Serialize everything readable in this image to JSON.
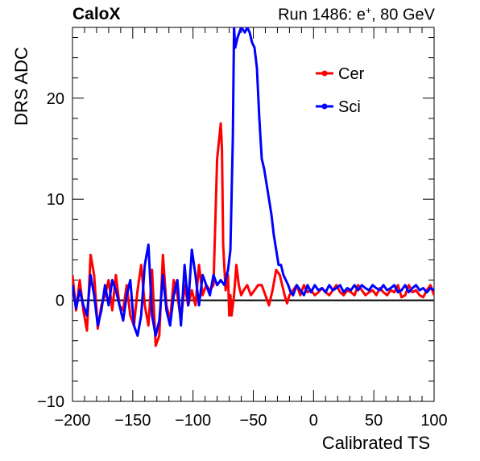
{
  "header": {
    "experiment": "CaloX",
    "run_prefix": "Run 1486: e",
    "run_sup": "+",
    "run_suffix": ", 80 GeV"
  },
  "chart_data": {
    "type": "line",
    "title": "",
    "xlabel": "Calibrated TS",
    "ylabel": "DRS ADC",
    "xlim": [
      -200,
      100
    ],
    "ylim": [
      -10,
      27
    ],
    "xticks": [
      -200,
      -150,
      -100,
      -50,
      0,
      50,
      100
    ],
    "yticks": [
      -10,
      0,
      10,
      20
    ],
    "xtick_labels": [
      "−200",
      "−150",
      "−100",
      "−50",
      "0",
      "50",
      "100"
    ],
    "ytick_labels": [
      "−10",
      "0",
      "10",
      "20"
    ],
    "baseline_y": 0,
    "grid": false,
    "legend_position": "top-right",
    "series": [
      {
        "name": "Cer",
        "color": "#ff0000",
        "x": [
          -200,
          -197,
          -194,
          -191,
          -188,
          -185,
          -182,
          -179,
          -176,
          -173,
          -170,
          -167,
          -164,
          -161,
          -158,
          -155,
          -152,
          -149,
          -146,
          -143,
          -140,
          -137,
          -134,
          -131,
          -128,
          -125,
          -122,
          -119,
          -116,
          -113,
          -110,
          -107,
          -104,
          -101,
          -98,
          -95,
          -92,
          -89,
          -86,
          -83,
          -80,
          -77,
          -76,
          -75,
          -73,
          -71,
          -70,
          -69,
          -68,
          -67,
          -66,
          -64,
          -62,
          -60,
          -58,
          -55,
          -52,
          -49,
          -46,
          -43,
          -40,
          -37,
          -34,
          -31,
          -28,
          -26,
          -24,
          -22,
          -20,
          -17,
          -14,
          -11,
          -8,
          -5,
          -2,
          1,
          4,
          7,
          10,
          13,
          16,
          19,
          22,
          25,
          28,
          31,
          34,
          37,
          40,
          43,
          46,
          49,
          52,
          55,
          58,
          61,
          64,
          67,
          70,
          73,
          76,
          79,
          82,
          85,
          88,
          91,
          94,
          97,
          100
        ],
        "values": [
          2.5,
          -1.0,
          2.0,
          -1.0,
          -3.0,
          4.5,
          2.5,
          -2.8,
          -0.5,
          0.5,
          2.0,
          -1.0,
          2.5,
          -0.5,
          -1.0,
          1.5,
          -1.5,
          -2.5,
          1.0,
          3.5,
          -0.5,
          -2.5,
          3.0,
          -4.5,
          -3.5,
          4.5,
          -0.5,
          -2.0,
          2.0,
          0.5,
          -2.0,
          1.5,
          -0.5,
          1.0,
          -0.5,
          3.5,
          0.5,
          1.5,
          1.0,
          1.5,
          14.0,
          17.5,
          15.0,
          5.5,
          1.0,
          2.5,
          -1.5,
          0.5,
          -1.5,
          -0.5,
          0.5,
          3.5,
          1.5,
          0.5,
          1.0,
          1.5,
          0.5,
          1.0,
          1.5,
          1.5,
          0.5,
          -0.5,
          1.0,
          3.0,
          2.5,
          1.5,
          0.5,
          -0.3,
          0.5,
          1.0,
          1.5,
          0.5,
          1.5,
          0.8,
          1.0,
          0.5,
          0.8,
          1.2,
          0.8,
          0.5,
          1.0,
          1.5,
          0.8,
          0.5,
          1.0,
          0.8,
          0.5,
          1.5,
          1.0,
          0.5,
          0.8,
          1.0,
          0.5,
          1.2,
          0.8,
          0.5,
          1.0,
          0.8,
          1.5,
          0.3,
          0.5,
          1.5,
          0.8,
          1.0,
          0.5,
          0.3,
          1.0,
          1.5,
          0.5
        ]
      },
      {
        "name": "Sci",
        "color": "#0000ff",
        "x": [
          -200,
          -197,
          -194,
          -191,
          -188,
          -185,
          -182,
          -179,
          -176,
          -173,
          -170,
          -167,
          -164,
          -161,
          -158,
          -155,
          -152,
          -149,
          -146,
          -143,
          -140,
          -137,
          -134,
          -131,
          -128,
          -125,
          -122,
          -119,
          -116,
          -113,
          -110,
          -107,
          -104,
          -101,
          -98,
          -95,
          -92,
          -89,
          -86,
          -83,
          -80,
          -77,
          -74,
          -71,
          -69,
          -67,
          -66,
          -65,
          -63,
          -60,
          -57,
          -55,
          -53,
          -51,
          -49,
          -47,
          -45,
          -43,
          -41,
          -39,
          -37,
          -35,
          -33,
          -31,
          -29,
          -27,
          -25,
          -23,
          -21,
          -19,
          -17,
          -14,
          -11,
          -8,
          -5,
          -2,
          1,
          4,
          7,
          10,
          13,
          16,
          19,
          22,
          25,
          28,
          31,
          34,
          37,
          40,
          43,
          46,
          49,
          52,
          55,
          58,
          61,
          64,
          67,
          70,
          73,
          76,
          79,
          82,
          85,
          88,
          91,
          94,
          97,
          100
        ],
        "values": [
          1.5,
          -0.8,
          1.0,
          -0.5,
          -1.5,
          2.5,
          0.5,
          -2.5,
          -1.0,
          1.5,
          -0.5,
          2.0,
          1.0,
          -0.5,
          -2.0,
          0.5,
          2.0,
          -2.5,
          -3.5,
          -1.5,
          3.5,
          5.5,
          -1.5,
          -3.5,
          -2.0,
          2.5,
          -1.0,
          -2.5,
          0.5,
          2.0,
          -2.5,
          3.5,
          -0.5,
          5.0,
          2.5,
          -0.5,
          2.5,
          1.5,
          0.5,
          2.5,
          1.5,
          2.0,
          1.5,
          3.0,
          5.0,
          16.0,
          27.0,
          25.0,
          26.0,
          27.0,
          26.5,
          27.0,
          26.5,
          25.5,
          25.0,
          23.0,
          18.0,
          14.0,
          13.0,
          11.5,
          10.0,
          8.5,
          6.5,
          5.0,
          3.5,
          3.5,
          2.5,
          2.0,
          1.5,
          0.8,
          0.5,
          1.5,
          1.0,
          0.5,
          1.5,
          0.8,
          1.5,
          1.0,
          1.2,
          0.8,
          1.5,
          1.0,
          1.2,
          1.5,
          0.8,
          1.2,
          1.0,
          1.5,
          1.0,
          1.5,
          1.2,
          1.0,
          1.5,
          1.2,
          1.0,
          1.5,
          1.0,
          1.2,
          1.5,
          0.8,
          1.0,
          1.5,
          0.8,
          1.2,
          1.5,
          1.0,
          1.2,
          0.8,
          1.2,
          1.0
        ]
      }
    ]
  }
}
